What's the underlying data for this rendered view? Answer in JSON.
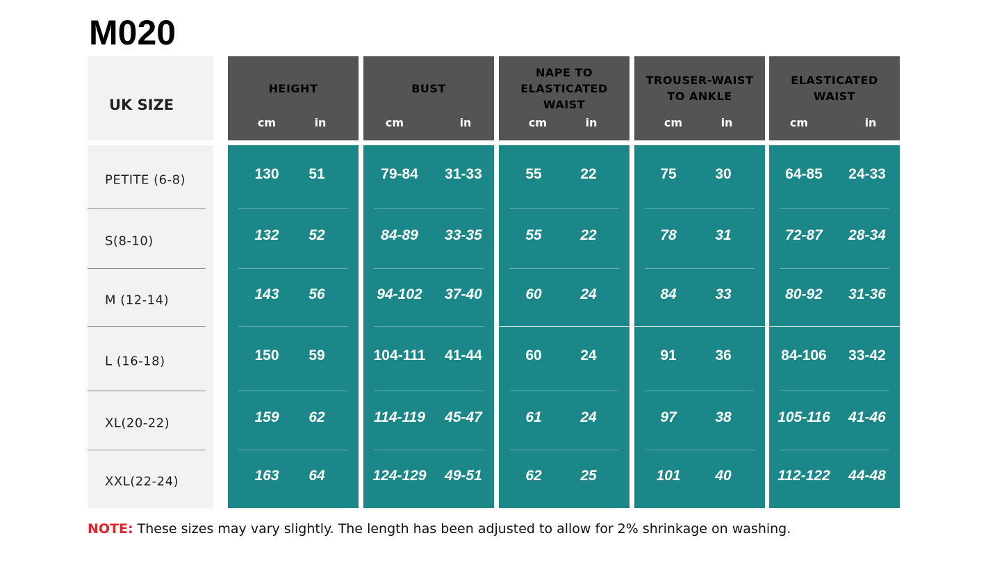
{
  "title": "M020",
  "header": {
    "size_label": "UK SIZE",
    "columns": [
      {
        "name": "HEIGHT",
        "units": [
          "cm",
          "in"
        ]
      },
      {
        "name": "BUST",
        "units": [
          "cm",
          "in"
        ]
      },
      {
        "name": "NAPE TO ELASTICATED WAIST",
        "units": [
          "cm",
          "in"
        ]
      },
      {
        "name": "TROUSER-WAIST TO ANKLE",
        "units": [
          "cm",
          "in"
        ]
      },
      {
        "name": "ELASTICATED WAIST",
        "units": [
          "cm",
          "in"
        ]
      }
    ]
  },
  "table": {
    "rows": [
      {
        "size": "PETITE (6-8)",
        "values": [
          "130",
          "51",
          "79-84",
          "31-33",
          "55",
          "22",
          "75",
          "30",
          "64-85",
          "24-33"
        ]
      },
      {
        "size": "S(8-10)",
        "values": [
          "132",
          "52",
          "84-89",
          "33-35",
          "55",
          "22",
          "78",
          "31",
          "72-87",
          "28-34"
        ]
      },
      {
        "size": "M (12-14)",
        "values": [
          "143",
          "56",
          "94-102",
          "37-40",
          "60",
          "24",
          "84",
          "33",
          "80-92",
          "31-36"
        ]
      },
      {
        "size": "L (16-18)",
        "values": [
          "150",
          "59",
          "104-111",
          "41-44",
          "60",
          "24",
          "91",
          "36",
          "84-106",
          "33-42"
        ]
      },
      {
        "size": "XL(20-22)",
        "values": [
          "159",
          "62",
          "114-119",
          "45-47",
          "61",
          "24",
          "97",
          "38",
          "105-116",
          "41-46"
        ]
      },
      {
        "size": "XXL(22-24)",
        "values": [
          "163",
          "64",
          "124-129",
          "49-51",
          "62",
          "25",
          "101",
          "40",
          "112-122",
          "44-48"
        ]
      }
    ]
  },
  "note": {
    "label": "NOTE:",
    "text": "These sizes may vary slightly. The length has been adjusted to allow for 2% shrinkage on washing."
  }
}
